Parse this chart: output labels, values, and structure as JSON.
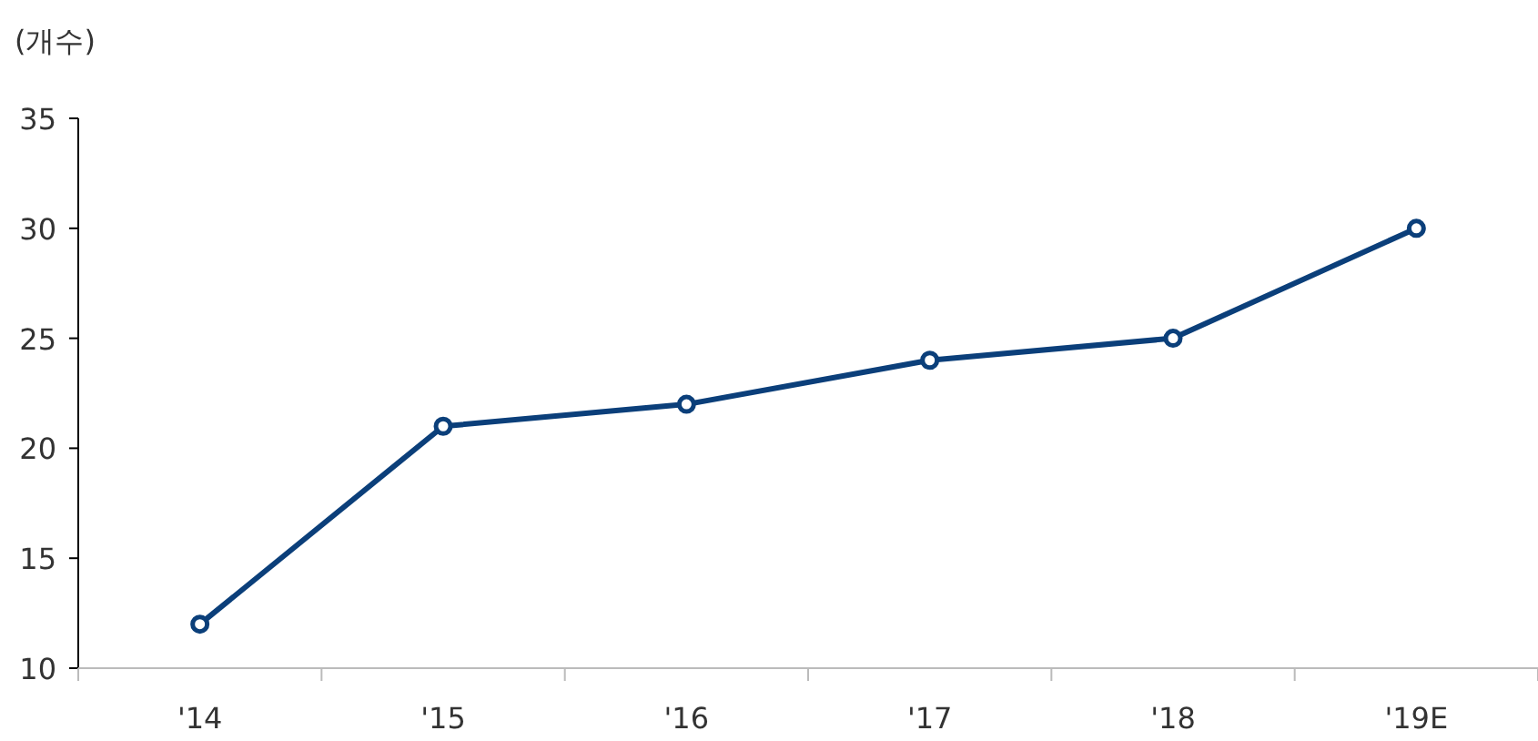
{
  "chart_data": {
    "type": "line",
    "ylabel": "(개수)",
    "categories": [
      "'14",
      "'15",
      "'16",
      "'17",
      "'18",
      "'19E"
    ],
    "series": [
      {
        "color": "#0b3f7a",
        "values": [
          12,
          21,
          22,
          24,
          25,
          30
        ]
      }
    ],
    "ylim": [
      10,
      35
    ],
    "yticks": [
      10,
      15,
      20,
      25,
      30,
      35
    ],
    "marker": "circle",
    "line_style": "solid",
    "grid": false
  }
}
